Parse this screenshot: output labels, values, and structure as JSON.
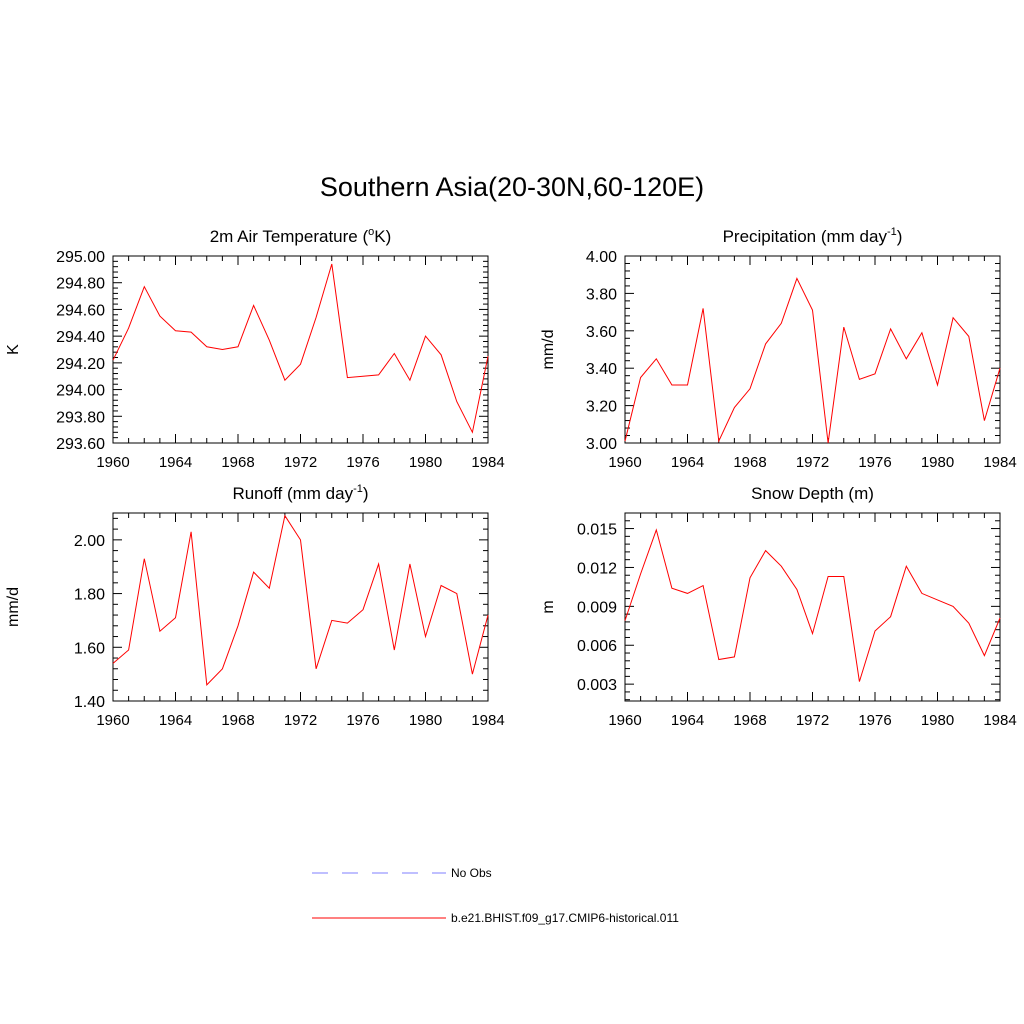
{
  "figure": {
    "title": "Southern Asia(20-30N,60-120E)"
  },
  "legend": [
    {
      "label": "No Obs",
      "color": "#9999ff",
      "dash": "dashed"
    },
    {
      "label": "b.e21.BHIST.f09_g17.CMIP6-historical.011",
      "color": "#ff0000",
      "dash": "solid"
    }
  ],
  "colors": {
    "model_line": "#ff0000",
    "obs_line": "#9999ff",
    "axis": "#000000"
  },
  "chart_data": [
    {
      "type": "line",
      "title": "2m Air Temperature (",
      "title_super": "o",
      "title_tail": "K)",
      "ylabel": "K",
      "xlim": [
        1960,
        1984
      ],
      "ylim": [
        293.6,
        295.0
      ],
      "xticks": [
        1960,
        1964,
        1968,
        1972,
        1976,
        1980,
        1984
      ],
      "yticks": [
        "293.60",
        "293.80",
        "294.00",
        "294.20",
        "294.40",
        "294.60",
        "294.80",
        "295.00"
      ],
      "ytick_values": [
        293.6,
        293.8,
        294.0,
        294.2,
        294.4,
        294.6,
        294.8,
        295.0
      ],
      "series": [
        {
          "name": "b.e21.BHIST.f09_g17.CMIP6-historical.011",
          "x": [
            1960,
            1961,
            1962,
            1963,
            1964,
            1965,
            1966,
            1967,
            1968,
            1969,
            1970,
            1971,
            1972,
            1973,
            1974,
            1975,
            1976,
            1977,
            1978,
            1979,
            1980,
            1981,
            1982,
            1983,
            1984
          ],
          "y": [
            294.22,
            294.46,
            294.77,
            294.55,
            294.44,
            294.43,
            294.32,
            294.3,
            294.32,
            294.63,
            294.37,
            294.07,
            294.19,
            294.54,
            294.94,
            294.09,
            294.1,
            294.11,
            294.27,
            294.07,
            294.4,
            294.26,
            293.91,
            293.68,
            294.25
          ]
        }
      ]
    },
    {
      "type": "line",
      "title": "Precipitation (mm day",
      "title_super": "-1",
      "title_tail": ")",
      "ylabel": "mm/d",
      "xlim": [
        1960,
        1984
      ],
      "ylim": [
        3.0,
        4.0
      ],
      "xticks": [
        1960,
        1964,
        1968,
        1972,
        1976,
        1980,
        1984
      ],
      "yticks": [
        "3.00",
        "3.20",
        "3.40",
        "3.60",
        "3.80",
        "4.00"
      ],
      "ytick_values": [
        3.0,
        3.2,
        3.4,
        3.6,
        3.8,
        4.0
      ],
      "series": [
        {
          "name": "b.e21.BHIST.f09_g17.CMIP6-historical.011",
          "x": [
            1960,
            1961,
            1962,
            1963,
            1964,
            1965,
            1966,
            1967,
            1968,
            1969,
            1970,
            1971,
            1972,
            1973,
            1974,
            1975,
            1976,
            1977,
            1978,
            1979,
            1980,
            1981,
            1982,
            1983,
            1984
          ],
          "y": [
            3.01,
            3.35,
            3.45,
            3.31,
            3.31,
            3.72,
            3.01,
            3.19,
            3.29,
            3.53,
            3.64,
            3.88,
            3.71,
            3.0,
            3.62,
            3.34,
            3.37,
            3.61,
            3.45,
            3.59,
            3.31,
            3.67,
            3.57,
            3.12,
            3.4
          ]
        }
      ]
    },
    {
      "type": "line",
      "title": "Runoff (mm day",
      "title_super": "-1",
      "title_tail": ")",
      "ylabel": "mm/d",
      "xlim": [
        1960,
        1984
      ],
      "ylim": [
        1.4,
        2.1
      ],
      "xticks": [
        1960,
        1964,
        1968,
        1972,
        1976,
        1980,
        1984
      ],
      "yticks": [
        "1.40",
        "1.60",
        "1.80",
        "2.00"
      ],
      "ytick_values": [
        1.4,
        1.6,
        1.8,
        2.0
      ],
      "series": [
        {
          "name": "b.e21.BHIST.f09_g17.CMIP6-historical.011",
          "x": [
            1960,
            1961,
            1962,
            1963,
            1964,
            1965,
            1966,
            1967,
            1968,
            1969,
            1970,
            1971,
            1972,
            1973,
            1974,
            1975,
            1976,
            1977,
            1978,
            1979,
            1980,
            1981,
            1982,
            1983,
            1984
          ],
          "y": [
            1.54,
            1.59,
            1.93,
            1.66,
            1.71,
            2.03,
            1.46,
            1.52,
            1.68,
            1.88,
            1.82,
            2.09,
            2.0,
            1.52,
            1.7,
            1.69,
            1.74,
            1.91,
            1.59,
            1.91,
            1.64,
            1.83,
            1.8,
            1.5,
            1.72
          ]
        }
      ]
    },
    {
      "type": "line",
      "title": "Snow Depth (m)",
      "title_super": "",
      "title_tail": "",
      "ylabel": "m",
      "xlim": [
        1960,
        1984
      ],
      "ylim": [
        0.0017,
        0.0162
      ],
      "xticks": [
        1960,
        1964,
        1968,
        1972,
        1976,
        1980,
        1984
      ],
      "yticks": [
        "0.003",
        "0.006",
        "0.009",
        "0.012",
        "0.015"
      ],
      "ytick_values": [
        0.003,
        0.006,
        0.009,
        0.012,
        0.015
      ],
      "series": [
        {
          "name": "b.e21.BHIST.f09_g17.CMIP6-historical.011",
          "x": [
            1960,
            1961,
            1962,
            1963,
            1964,
            1965,
            1966,
            1967,
            1968,
            1969,
            1970,
            1971,
            1972,
            1973,
            1974,
            1975,
            1976,
            1977,
            1978,
            1979,
            1980,
            1981,
            1982,
            1983,
            1984
          ],
          "y": [
            0.0079,
            0.0115,
            0.0149,
            0.0104,
            0.01,
            0.0106,
            0.0049,
            0.0051,
            0.0112,
            0.0133,
            0.0121,
            0.0103,
            0.0069,
            0.0113,
            0.0113,
            0.0032,
            0.0071,
            0.0082,
            0.0121,
            0.01,
            0.0095,
            0.009,
            0.0077,
            0.0052,
            0.0081
          ]
        }
      ]
    }
  ]
}
